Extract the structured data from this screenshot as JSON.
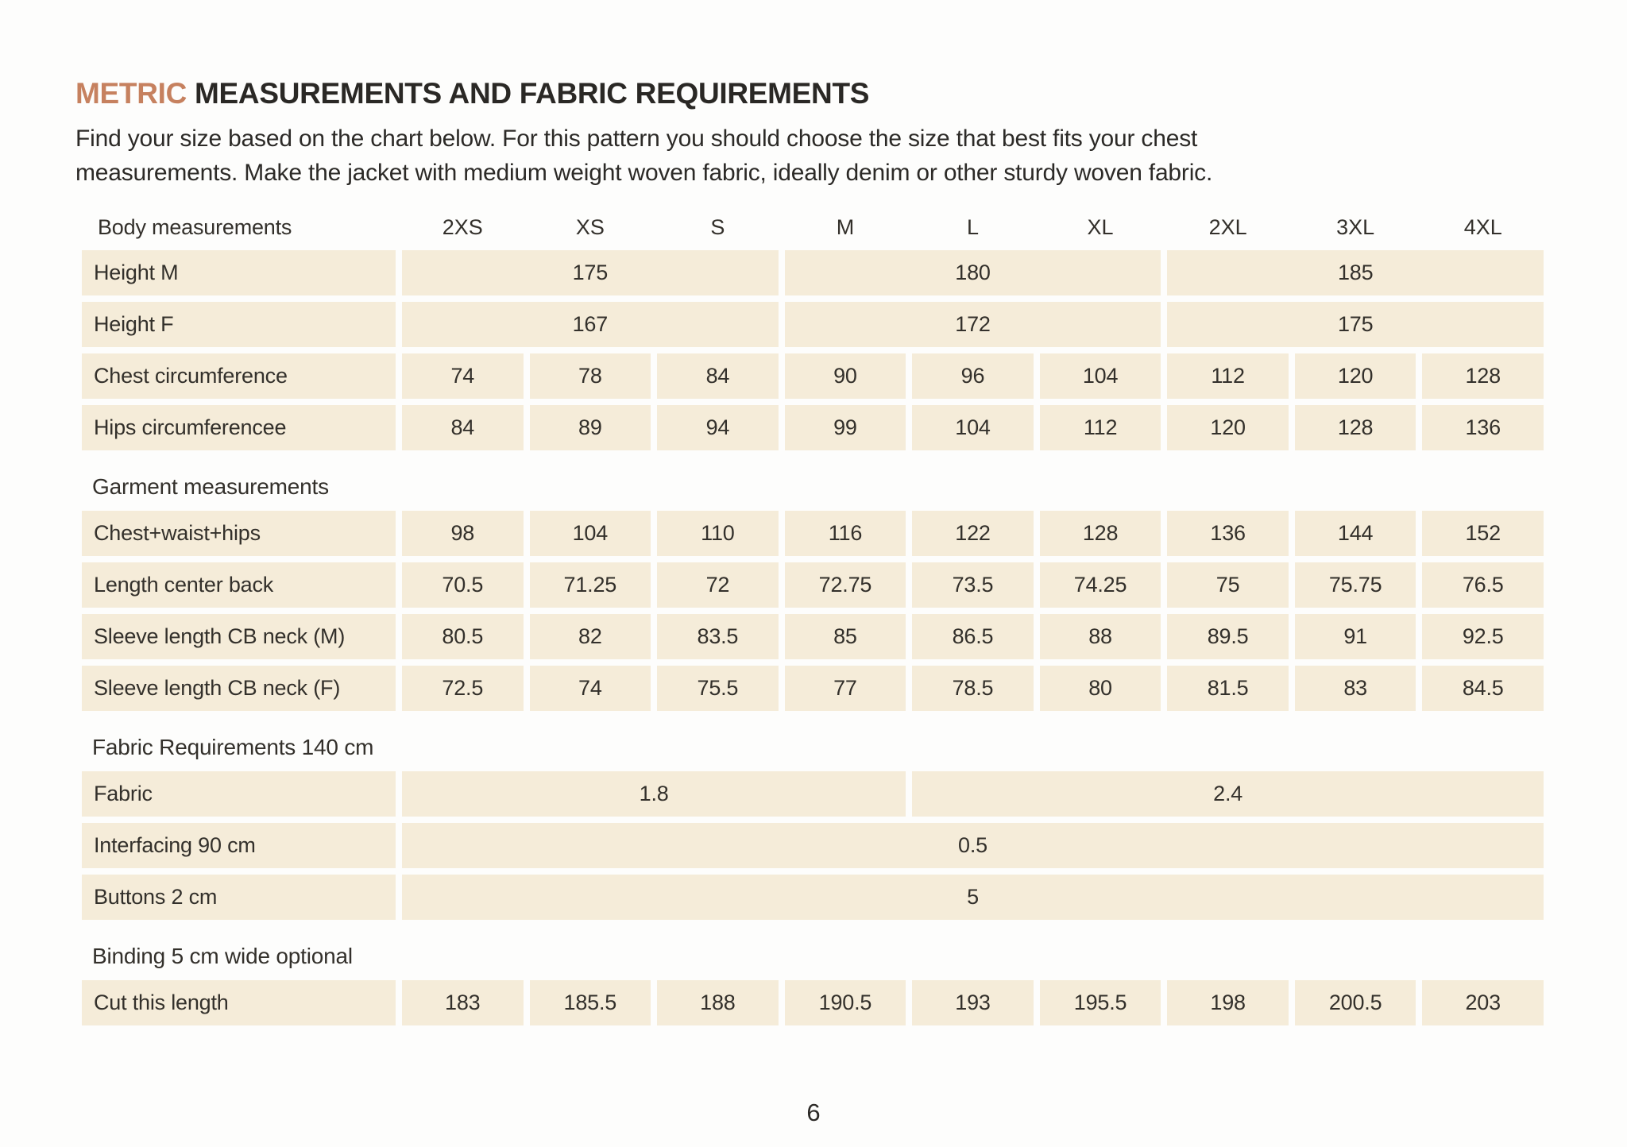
{
  "page": {
    "title_accent": "METRIC",
    "title_rest": " MEASUREMENTS AND FABRIC REQUIREMENTS",
    "intro_line1": "Find your size based on the chart below. For this pattern you should choose the size that best fits your chest",
    "intro_line2": "measurements. Make the jacket with medium weight woven fabric, ideally denim or other sturdy woven fabric.",
    "page_number": "6"
  },
  "colors": {
    "accent": "#c6815f",
    "cell_bg": "#f5ecd9",
    "text": "#33302b"
  },
  "table": {
    "size_columns": [
      "2XS",
      "XS",
      "S",
      "M",
      "L",
      "XL",
      "2XL",
      "3XL",
      "4XL"
    ],
    "sections": [
      {
        "title": "Body measurements",
        "rows": [
          {
            "label": "Height M",
            "cells": [
              {
                "value": "175",
                "span": 3
              },
              {
                "value": "180",
                "span": 3
              },
              {
                "value": "185",
                "span": 3
              }
            ]
          },
          {
            "label": "Height F",
            "cells": [
              {
                "value": "167",
                "span": 3
              },
              {
                "value": "172",
                "span": 3
              },
              {
                "value": "175",
                "span": 3
              }
            ]
          },
          {
            "label": "Chest circumference",
            "cells": [
              {
                "value": "74",
                "span": 1
              },
              {
                "value": "78",
                "span": 1
              },
              {
                "value": "84",
                "span": 1
              },
              {
                "value": "90",
                "span": 1
              },
              {
                "value": "96",
                "span": 1
              },
              {
                "value": "104",
                "span": 1
              },
              {
                "value": "112",
                "span": 1
              },
              {
                "value": "120",
                "span": 1
              },
              {
                "value": "128",
                "span": 1
              }
            ]
          },
          {
            "label": "Hips circumferencee",
            "cells": [
              {
                "value": "84",
                "span": 1
              },
              {
                "value": "89",
                "span": 1
              },
              {
                "value": "94",
                "span": 1
              },
              {
                "value": "99",
                "span": 1
              },
              {
                "value": "104",
                "span": 1
              },
              {
                "value": "112",
                "span": 1
              },
              {
                "value": "120",
                "span": 1
              },
              {
                "value": "128",
                "span": 1
              },
              {
                "value": "136",
                "span": 1
              }
            ]
          }
        ]
      },
      {
        "title": "Garment measurements",
        "rows": [
          {
            "label": "Chest+waist+hips",
            "cells": [
              {
                "value": "98",
                "span": 1
              },
              {
                "value": "104",
                "span": 1
              },
              {
                "value": "110",
                "span": 1
              },
              {
                "value": "116",
                "span": 1
              },
              {
                "value": "122",
                "span": 1
              },
              {
                "value": "128",
                "span": 1
              },
              {
                "value": "136",
                "span": 1
              },
              {
                "value": "144",
                "span": 1
              },
              {
                "value": "152",
                "span": 1
              }
            ]
          },
          {
            "label": "Length center back",
            "cells": [
              {
                "value": "70.5",
                "span": 1
              },
              {
                "value": "71.25",
                "span": 1
              },
              {
                "value": "72",
                "span": 1
              },
              {
                "value": "72.75",
                "span": 1
              },
              {
                "value": "73.5",
                "span": 1
              },
              {
                "value": "74.25",
                "span": 1
              },
              {
                "value": "75",
                "span": 1
              },
              {
                "value": "75.75",
                "span": 1
              },
              {
                "value": "76.5",
                "span": 1
              }
            ]
          },
          {
            "label": "Sleeve length CB neck (M)",
            "cells": [
              {
                "value": "80.5",
                "span": 1
              },
              {
                "value": "82",
                "span": 1
              },
              {
                "value": "83.5",
                "span": 1
              },
              {
                "value": "85",
                "span": 1
              },
              {
                "value": "86.5",
                "span": 1
              },
              {
                "value": "88",
                "span": 1
              },
              {
                "value": "89.5",
                "span": 1
              },
              {
                "value": "91",
                "span": 1
              },
              {
                "value": "92.5",
                "span": 1
              }
            ]
          },
          {
            "label": "Sleeve length CB neck (F)",
            "cells": [
              {
                "value": "72.5",
                "span": 1
              },
              {
                "value": "74",
                "span": 1
              },
              {
                "value": "75.5",
                "span": 1
              },
              {
                "value": "77",
                "span": 1
              },
              {
                "value": "78.5",
                "span": 1
              },
              {
                "value": "80",
                "span": 1
              },
              {
                "value": "81.5",
                "span": 1
              },
              {
                "value": "83",
                "span": 1
              },
              {
                "value": "84.5",
                "span": 1
              }
            ]
          }
        ]
      },
      {
        "title": "Fabric Requirements 140 cm",
        "rows": [
          {
            "label": "Fabric",
            "cells": [
              {
                "value": "1.8",
                "span": 4
              },
              {
                "value": "2.4",
                "span": 5
              }
            ]
          },
          {
            "label": "Interfacing 90 cm",
            "cells": [
              {
                "value": "0.5",
                "span": 9
              }
            ]
          },
          {
            "label": "Buttons 2 cm",
            "cells": [
              {
                "value": "5",
                "span": 9
              }
            ]
          }
        ]
      },
      {
        "title": "Binding 5 cm wide optional",
        "rows": [
          {
            "label": "Cut this length",
            "cells": [
              {
                "value": "183",
                "span": 1
              },
              {
                "value": "185.5",
                "span": 1
              },
              {
                "value": "188",
                "span": 1
              },
              {
                "value": "190.5",
                "span": 1
              },
              {
                "value": "193",
                "span": 1
              },
              {
                "value": "195.5",
                "span": 1
              },
              {
                "value": "198",
                "span": 1
              },
              {
                "value": "200.5",
                "span": 1
              },
              {
                "value": "203",
                "span": 1
              }
            ]
          }
        ]
      }
    ]
  }
}
